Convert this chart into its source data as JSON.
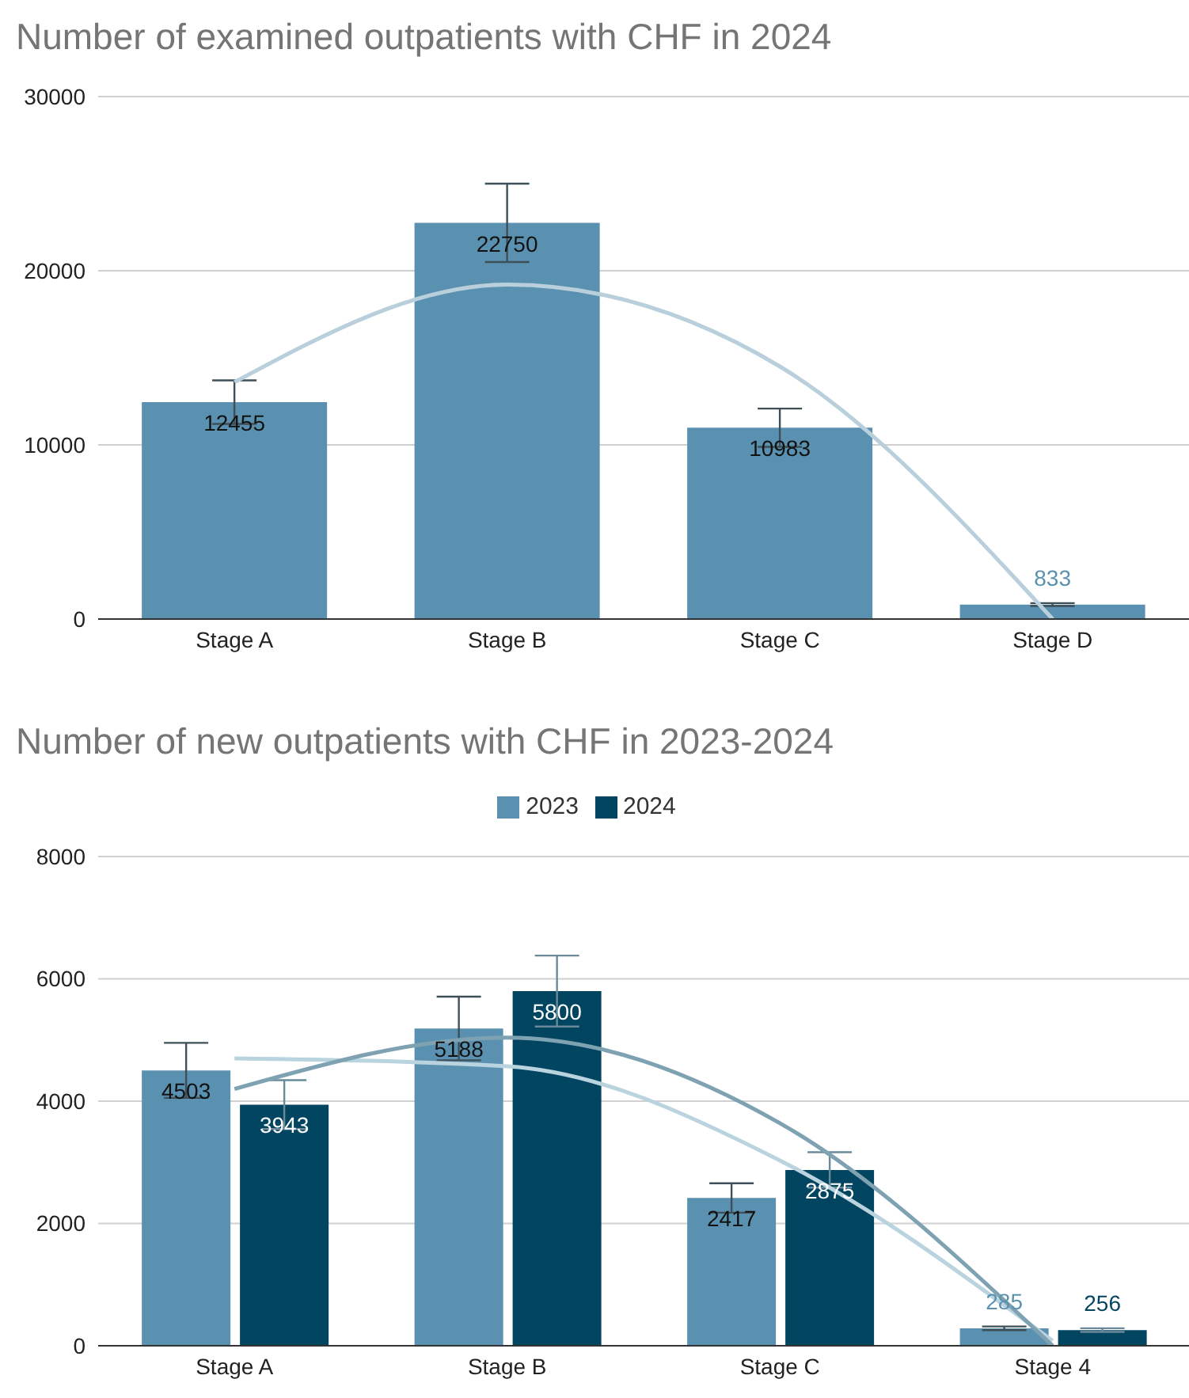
{
  "chart_data": [
    {
      "type": "bar",
      "title": "Number of examined outpatients with CHF in 2024",
      "categories": [
        "Stage A",
        "Stage B",
        "Stage C",
        "Stage D"
      ],
      "series": [
        {
          "color": "#5a91b0",
          "values": [
            12455,
            22750,
            10983,
            833
          ],
          "errors": [
            1250,
            2250,
            1100,
            83
          ],
          "value_labels": [
            "12455",
            "22750",
            "10983",
            "833"
          ]
        },
        {
          "type": "line",
          "color": "#b9d0dc",
          "values": [
            13600,
            19200,
            14500,
            0
          ]
        }
      ],
      "ylim": [
        0,
        30000
      ],
      "yticks": [
        0,
        10000,
        20000,
        30000
      ],
      "grid": "y"
    },
    {
      "type": "bar",
      "title": "Number of new outpatients with CHF in 2023-2024",
      "categories": [
        "Stage A",
        "Stage B",
        "Stage C",
        "Stage 4"
      ],
      "series": [
        {
          "name": "2023",
          "color": "#5a91b0",
          "values": [
            4503,
            5188,
            2417,
            285
          ],
          "errors": [
            450,
            520,
            240,
            30
          ],
          "value_labels": [
            "4503",
            "5188",
            "2417",
            "285"
          ]
        },
        {
          "name": "2024",
          "color": "#024560",
          "values": [
            3943,
            5800,
            2875,
            256
          ],
          "errors": [
            400,
            580,
            290,
            30
          ],
          "value_labels": [
            "3943",
            "5800",
            "2875",
            "256"
          ]
        },
        {
          "type": "line",
          "color": "#b9d3df",
          "values": [
            4700,
            4570,
            3030,
            80
          ]
        },
        {
          "type": "line",
          "color": "#7fa2b3",
          "values": [
            4200,
            5040,
            3640,
            0
          ]
        }
      ],
      "ylim": [
        0,
        8000
      ],
      "yticks": [
        0,
        2000,
        4000,
        6000,
        8000
      ],
      "grid": "y",
      "legend": "top"
    }
  ]
}
